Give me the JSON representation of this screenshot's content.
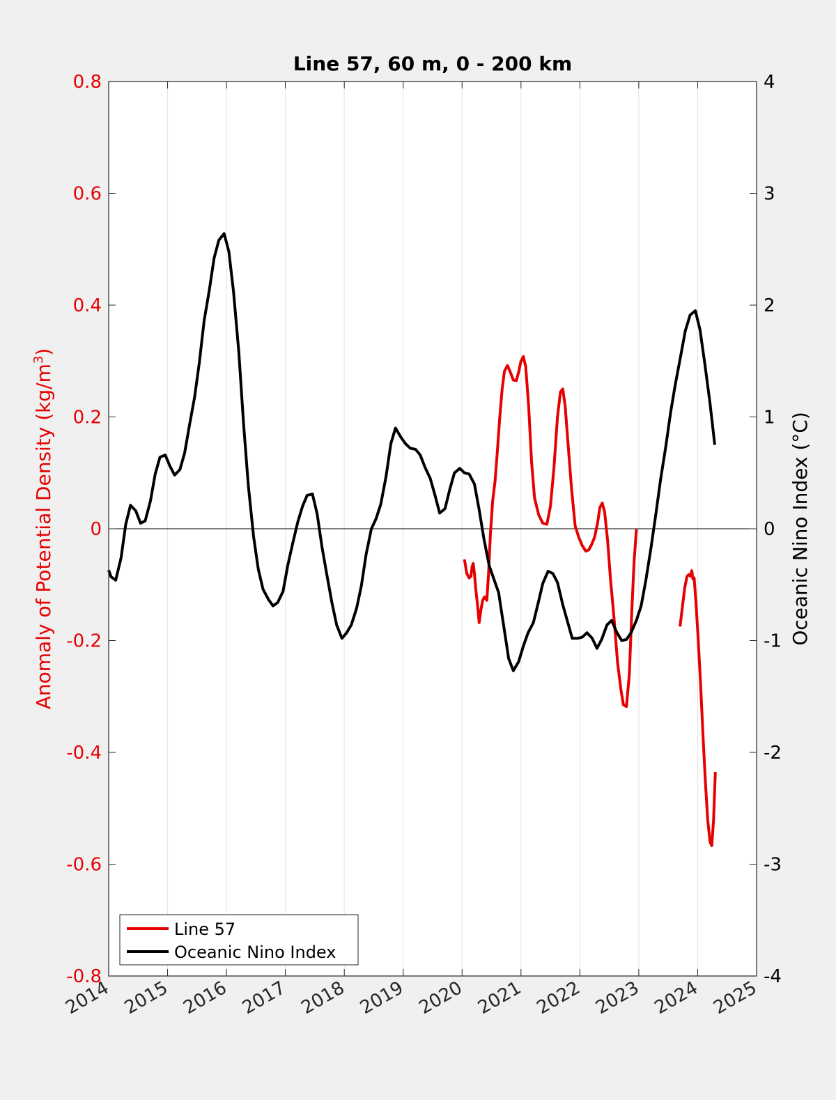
{
  "chart_data": {
    "type": "line",
    "title": "Line 57, 60 m, 0 - 200 km",
    "xlabel": "",
    "ylabel_left": "Anomaly of Potential Density (kg/m",
    "ylabel_left_sup": "3",
    "ylabel_left_close": ")",
    "ylabel_right": "Oceanic Nino Index (°C)",
    "xlim": [
      2014,
      2025
    ],
    "ylim_left": [
      -0.8,
      0.8
    ],
    "ylim_right": [
      -4,
      4
    ],
    "x_ticks": [
      "2014",
      "2015",
      "2016",
      "2017",
      "2018",
      "2019",
      "2020",
      "2021",
      "2022",
      "2023",
      "2024",
      "2025"
    ],
    "y_ticks_left": [
      "0.8",
      "0.6",
      "0.4",
      "0.2",
      "0",
      "-0.2",
      "-0.4",
      "-0.6",
      "-0.8"
    ],
    "y_ticks_right": [
      "4",
      "3",
      "2",
      "1",
      "0",
      "-1",
      "-2",
      "-3",
      "-4"
    ],
    "grid": "vertical",
    "legend_position": "bottom-left",
    "colors": {
      "line57": "#e60000",
      "oni": "#000000",
      "left_axis": "#e60000",
      "right_axis": "#000000",
      "background": "#f0f0f0",
      "plot_area": "#ffffff"
    },
    "series": [
      {
        "name": "Line 57",
        "axis": "left",
        "segments": [
          [
            [
              2020.04,
              -0.055
            ],
            [
              2020.08,
              -0.08
            ],
            [
              2020.12,
              -0.088
            ],
            [
              2020.15,
              -0.085
            ],
            [
              2020.17,
              -0.068
            ],
            [
              2020.19,
              -0.062
            ],
            [
              2020.21,
              -0.08
            ],
            [
              2020.23,
              -0.105
            ],
            [
              2020.26,
              -0.135
            ],
            [
              2020.29,
              -0.168
            ],
            [
              2020.32,
              -0.145
            ],
            [
              2020.35,
              -0.128
            ],
            [
              2020.38,
              -0.122
            ],
            [
              2020.42,
              -0.128
            ],
            [
              2020.45,
              -0.08
            ],
            [
              2020.48,
              -0.01
            ],
            [
              2020.52,
              0.05
            ],
            [
              2020.56,
              0.085
            ],
            [
              2020.6,
              0.14
            ],
            [
              2020.64,
              0.2
            ],
            [
              2020.68,
              0.25
            ],
            [
              2020.72,
              0.282
            ],
            [
              2020.77,
              0.292
            ],
            [
              2020.82,
              0.28
            ],
            [
              2020.87,
              0.266
            ],
            [
              2020.92,
              0.265
            ],
            [
              2020.96,
              0.28
            ],
            [
              2021.0,
              0.3
            ],
            [
              2021.04,
              0.308
            ],
            [
              2021.08,
              0.29
            ],
            [
              2021.13,
              0.22
            ],
            [
              2021.18,
              0.12
            ],
            [
              2021.23,
              0.055
            ],
            [
              2021.3,
              0.025
            ],
            [
              2021.37,
              0.01
            ],
            [
              2021.44,
              0.008
            ],
            [
              2021.5,
              0.04
            ],
            [
              2021.56,
              0.11
            ],
            [
              2021.62,
              0.2
            ],
            [
              2021.67,
              0.245
            ],
            [
              2021.71,
              0.25
            ],
            [
              2021.75,
              0.22
            ],
            [
              2021.8,
              0.15
            ],
            [
              2021.86,
              0.07
            ],
            [
              2021.92,
              0.005
            ],
            [
              2021.98,
              -0.015
            ],
            [
              2022.04,
              -0.03
            ],
            [
              2022.1,
              -0.04
            ],
            [
              2022.15,
              -0.038
            ],
            [
              2022.2,
              -0.028
            ],
            [
              2022.25,
              -0.015
            ],
            [
              2022.3,
              0.01
            ],
            [
              2022.34,
              0.038
            ],
            [
              2022.38,
              0.046
            ],
            [
              2022.42,
              0.03
            ],
            [
              2022.47,
              -0.02
            ],
            [
              2022.52,
              -0.09
            ],
            [
              2022.58,
              -0.16
            ],
            [
              2022.64,
              -0.24
            ],
            [
              2022.7,
              -0.29
            ],
            [
              2022.74,
              -0.315
            ],
            [
              2022.79,
              -0.318
            ],
            [
              2022.84,
              -0.26
            ],
            [
              2022.88,
              -0.15
            ],
            [
              2022.92,
              -0.06
            ],
            [
              2022.96,
              -0.001
            ]
          ],
          [
            [
              2023.7,
              -0.175
            ],
            [
              2023.74,
              -0.14
            ],
            [
              2023.78,
              -0.105
            ],
            [
              2023.82,
              -0.085
            ],
            [
              2023.85,
              -0.082
            ],
            [
              2023.88,
              -0.085
            ],
            [
              2023.9,
              -0.075
            ],
            [
              2023.92,
              -0.09
            ],
            [
              2023.94,
              -0.088
            ],
            [
              2023.97,
              -0.13
            ],
            [
              2024.01,
              -0.2
            ],
            [
              2024.05,
              -0.28
            ],
            [
              2024.09,
              -0.37
            ],
            [
              2024.13,
              -0.45
            ],
            [
              2024.17,
              -0.52
            ],
            [
              2024.21,
              -0.56
            ],
            [
              2024.24,
              -0.567
            ],
            [
              2024.27,
              -0.52
            ],
            [
              2024.3,
              -0.435
            ]
          ]
        ]
      },
      {
        "name": "Oceanic Nino Index",
        "axis": "right",
        "segments": [
          [
            [
              2014.0,
              -0.37
            ],
            [
              2014.04,
              -0.43
            ],
            [
              2014.12,
              -0.46
            ],
            [
              2014.21,
              -0.26
            ],
            [
              2014.29,
              0.04
            ],
            [
              2014.37,
              0.21
            ],
            [
              2014.46,
              0.16
            ],
            [
              2014.54,
              0.05
            ],
            [
              2014.62,
              0.07
            ],
            [
              2014.71,
              0.25
            ],
            [
              2014.79,
              0.49
            ],
            [
              2014.87,
              0.64
            ],
            [
              2014.96,
              0.66
            ],
            [
              2015.04,
              0.56
            ],
            [
              2015.12,
              0.48
            ],
            [
              2015.21,
              0.53
            ],
            [
              2015.29,
              0.68
            ],
            [
              2015.37,
              0.92
            ],
            [
              2015.46,
              1.18
            ],
            [
              2015.54,
              1.49
            ],
            [
              2015.62,
              1.86
            ],
            [
              2015.71,
              2.14
            ],
            [
              2015.79,
              2.42
            ],
            [
              2015.87,
              2.58
            ],
            [
              2015.96,
              2.64
            ],
            [
              2016.04,
              2.48
            ],
            [
              2016.12,
              2.12
            ],
            [
              2016.21,
              1.58
            ],
            [
              2016.29,
              0.94
            ],
            [
              2016.37,
              0.39
            ],
            [
              2016.46,
              -0.07
            ],
            [
              2016.54,
              -0.36
            ],
            [
              2016.62,
              -0.54
            ],
            [
              2016.71,
              -0.63
            ],
            [
              2016.79,
              -0.69
            ],
            [
              2016.87,
              -0.66
            ],
            [
              2016.96,
              -0.56
            ],
            [
              2017.04,
              -0.33
            ],
            [
              2017.12,
              -0.14
            ],
            [
              2017.21,
              0.06
            ],
            [
              2017.29,
              0.2
            ],
            [
              2017.37,
              0.3
            ],
            [
              2017.46,
              0.31
            ],
            [
              2017.54,
              0.13
            ],
            [
              2017.62,
              -0.16
            ],
            [
              2017.71,
              -0.43
            ],
            [
              2017.79,
              -0.66
            ],
            [
              2017.87,
              -0.86
            ],
            [
              2017.96,
              -0.98
            ],
            [
              2018.04,
              -0.93
            ],
            [
              2018.12,
              -0.86
            ],
            [
              2018.21,
              -0.71
            ],
            [
              2018.29,
              -0.51
            ],
            [
              2018.37,
              -0.23
            ],
            [
              2018.46,
              0.0
            ],
            [
              2018.54,
              0.09
            ],
            [
              2018.62,
              0.22
            ],
            [
              2018.71,
              0.47
            ],
            [
              2018.79,
              0.76
            ],
            [
              2018.87,
              0.9
            ],
            [
              2018.96,
              0.82
            ],
            [
              2019.04,
              0.76
            ],
            [
              2019.12,
              0.72
            ],
            [
              2019.21,
              0.71
            ],
            [
              2019.29,
              0.66
            ],
            [
              2019.37,
              0.55
            ],
            [
              2019.46,
              0.45
            ],
            [
              2019.54,
              0.3
            ],
            [
              2019.62,
              0.14
            ],
            [
              2019.71,
              0.18
            ],
            [
              2019.79,
              0.35
            ],
            [
              2019.87,
              0.5
            ],
            [
              2019.96,
              0.54
            ],
            [
              2020.04,
              0.5
            ],
            [
              2020.12,
              0.49
            ],
            [
              2020.21,
              0.4
            ],
            [
              2020.29,
              0.17
            ],
            [
              2020.37,
              -0.09
            ],
            [
              2020.46,
              -0.33
            ],
            [
              2020.54,
              -0.45
            ],
            [
              2020.62,
              -0.57
            ],
            [
              2020.71,
              -0.88
            ],
            [
              2020.79,
              -1.16
            ],
            [
              2020.87,
              -1.27
            ],
            [
              2020.96,
              -1.19
            ],
            [
              2021.04,
              -1.05
            ],
            [
              2021.12,
              -0.93
            ],
            [
              2021.21,
              -0.84
            ],
            [
              2021.29,
              -0.67
            ],
            [
              2021.37,
              -0.49
            ],
            [
              2021.46,
              -0.38
            ],
            [
              2021.54,
              -0.4
            ],
            [
              2021.62,
              -0.48
            ],
            [
              2021.71,
              -0.68
            ],
            [
              2021.79,
              -0.83
            ],
            [
              2021.87,
              -0.98
            ],
            [
              2021.96,
              -0.98
            ],
            [
              2022.04,
              -0.97
            ],
            [
              2022.12,
              -0.93
            ],
            [
              2022.21,
              -0.98
            ],
            [
              2022.29,
              -1.07
            ],
            [
              2022.37,
              -0.99
            ],
            [
              2022.46,
              -0.86
            ],
            [
              2022.54,
              -0.82
            ],
            [
              2022.62,
              -0.92
            ],
            [
              2022.71,
              -1.0
            ],
            [
              2022.79,
              -0.99
            ],
            [
              2022.87,
              -0.93
            ],
            [
              2022.96,
              -0.82
            ],
            [
              2023.04,
              -0.69
            ],
            [
              2023.12,
              -0.46
            ],
            [
              2023.21,
              -0.16
            ],
            [
              2023.29,
              0.13
            ],
            [
              2023.37,
              0.44
            ],
            [
              2023.46,
              0.74
            ],
            [
              2023.54,
              1.04
            ],
            [
              2023.62,
              1.29
            ],
            [
              2023.71,
              1.54
            ],
            [
              2023.79,
              1.77
            ],
            [
              2023.87,
              1.91
            ],
            [
              2023.96,
              1.95
            ],
            [
              2024.04,
              1.78
            ],
            [
              2024.12,
              1.48
            ],
            [
              2024.21,
              1.12
            ],
            [
              2024.29,
              0.75
            ]
          ]
        ]
      }
    ]
  }
}
